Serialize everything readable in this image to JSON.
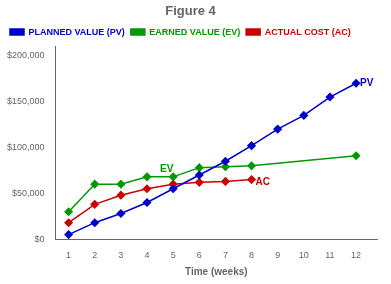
{
  "chart_data": {
    "type": "line",
    "title": "Figure 4",
    "xlabel": "Time (weeks)",
    "series": [
      {
        "name": "PLANNED VALUE (PV)",
        "color": "#0000cc",
        "x": [
          1,
          2,
          3,
          4,
          5,
          6,
          7,
          8,
          9,
          10,
          11,
          12
        ],
        "values": [
          5000,
          18000,
          28000,
          40000,
          55000,
          70000,
          85000,
          102000,
          120000,
          135000,
          155000,
          170000
        ]
      },
      {
        "name": "EARNED VALUE (EV)",
        "color": "#009900",
        "x": [
          1,
          2,
          3,
          4,
          5,
          6,
          7,
          8,
          12
        ],
        "values": [
          30000,
          60000,
          60000,
          68000,
          68000,
          78000,
          79000,
          80000,
          91000
        ]
      },
      {
        "name": "ACTUAL COST (AC)",
        "color": "#cc0000",
        "x": [
          1,
          2,
          3,
          4,
          5,
          6,
          7,
          8
        ],
        "values": [
          18000,
          38000,
          48000,
          55000,
          60000,
          62000,
          63000,
          65000
        ]
      }
    ],
    "marker": "diamond",
    "xlim": [
      0.5,
      12.8
    ],
    "xticks": [
      1,
      2,
      3,
      4,
      5,
      6,
      7,
      8,
      9,
      10,
      11,
      12
    ],
    "ylim": [
      0,
      210000
    ],
    "yticks": [
      {
        "value": 0,
        "label": "$0"
      },
      {
        "value": 50000,
        "label": "$50,000"
      },
      {
        "value": 100000,
        "label": "$100,000"
      },
      {
        "value": 150000,
        "label": "$150,000"
      },
      {
        "value": 200000,
        "label": "$200,000"
      }
    ],
    "grid": false,
    "legend": "upper left",
    "annotations": [
      {
        "text": "PV",
        "x": 12.15,
        "y": 170000,
        "color": "#0000cc"
      },
      {
        "text": "EV",
        "x": 4.5,
        "y": 76000,
        "color": "#009900"
      },
      {
        "text": "AC",
        "x": 8.15,
        "y": 62500,
        "color": "#cc0000"
      }
    ]
  }
}
